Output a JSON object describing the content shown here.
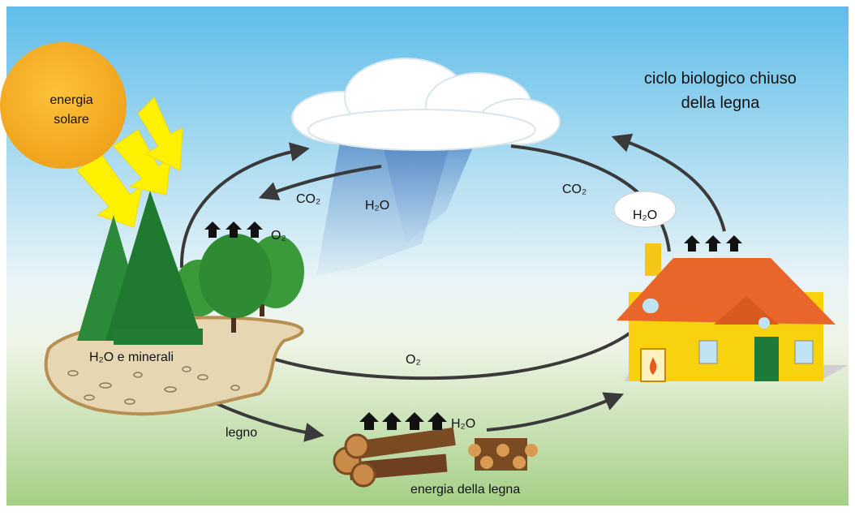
{
  "title": {
    "lines": [
      "ciclo biologico chiuso",
      "della legna"
    ]
  },
  "sun": {
    "lines": [
      "energia",
      "solare"
    ]
  },
  "labels": {
    "co2_left": "CO₂",
    "h2o_rain": "H₂O",
    "o2_top": "O₂",
    "co2_right": "CO₂",
    "h2o_smoke": "H₂O",
    "o2_bottom": "O₂",
    "soil": "H₂O e minerali",
    "legno": "legno",
    "h2o_logs": "H₂O",
    "wood_energy": "energia della legna"
  }
}
